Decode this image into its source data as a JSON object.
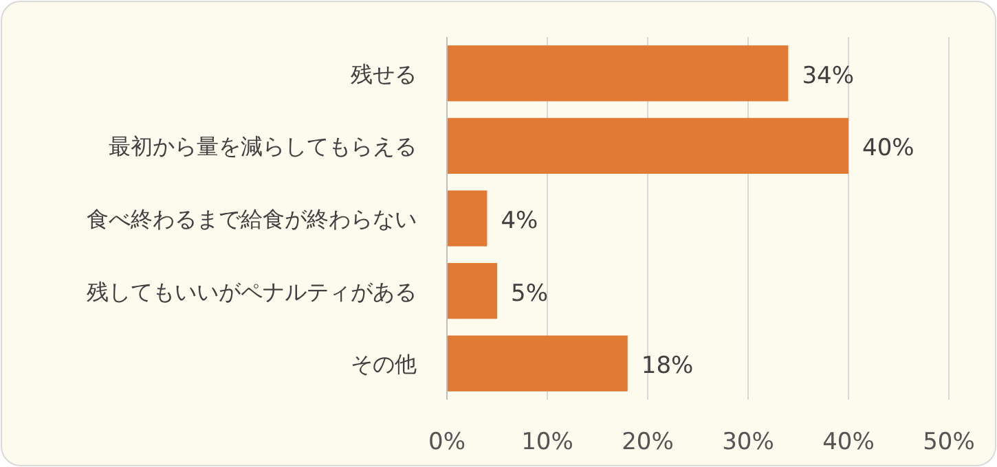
{
  "chart_data": {
    "type": "bar",
    "orientation": "horizontal",
    "categories": [
      "残せる",
      "最初から量を減らしてもらえる",
      "食べ終わるまで給食が終わらない",
      "残してもいいがペナルティがある",
      "その他"
    ],
    "values": [
      34,
      40,
      4,
      5,
      18
    ],
    "value_labels": [
      "34%",
      "40%",
      "4%",
      "5%",
      "18%"
    ],
    "color": "#e07a35",
    "xlim": [
      0,
      50
    ],
    "xticks": [
      {
        "value": 0,
        "label": "0%"
      },
      {
        "value": 10,
        "label": "10%"
      },
      {
        "value": 20,
        "label": "20%"
      },
      {
        "value": 30,
        "label": "30%"
      },
      {
        "value": 40,
        "label": "40%"
      },
      {
        "value": 50,
        "label": "50%"
      }
    ],
    "grid": "x"
  }
}
